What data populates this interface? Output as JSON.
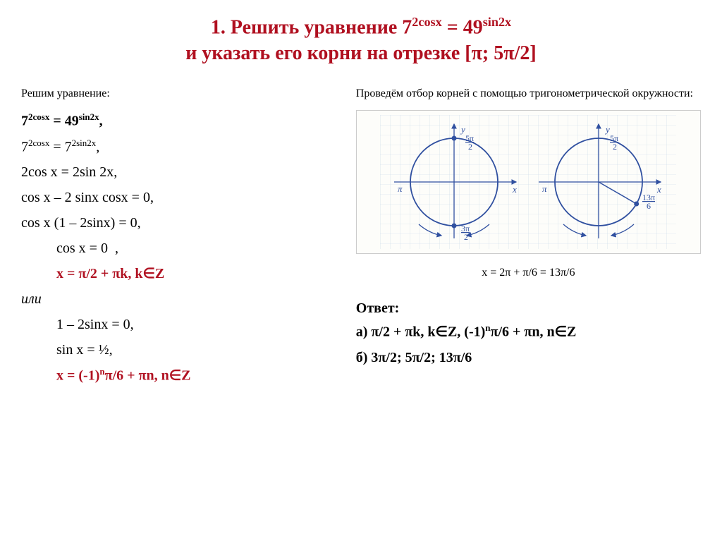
{
  "title": {
    "line1_pre": "1. Решить уравнение 7",
    "line1_sup1": "2cosx",
    "line1_mid": " = 49",
    "line1_sup2": "sin2x",
    "line2": "и указать его корни на отрезке [π; 5π/2]"
  },
  "left": {
    "sub": "Решим уравнение:",
    "eqs": [
      {
        "cls": "eq bold",
        "html": "7<sup>2cosx</sup> = 49<sup>sin2x</sup>,"
      },
      {
        "cls": "eq",
        "html": "7<sup>2cosx</sup> = 7<sup>2sin2x</sup>,"
      },
      {
        "cls": "eq",
        "html": "2cos x = 2sin 2x,"
      },
      {
        "cls": "eq",
        "html": "cos x – 2 sinx cosx = 0,"
      },
      {
        "cls": "eq",
        "html": "cos x (1 – 2sinx) = 0,"
      },
      {
        "cls": "eq ind1",
        "html": "cos x = 0&nbsp;&nbsp;,"
      },
      {
        "cls": "eq red ind1",
        "html": "x = π/2 + πk, k∈Z"
      },
      {
        "cls": "eq ital",
        "html": "или"
      },
      {
        "cls": "eq ind2",
        "html": "1 – 2sinx = 0,"
      },
      {
        "cls": "eq ind2",
        "html": "sin x = ½,"
      },
      {
        "cls": "eq red ind2",
        "html": "x = (-1)<sup>n</sup>π/6 + πn, n∈Z"
      }
    ]
  },
  "right": {
    "sub": "Проведём отбор корней с помощью тригонометрической окружности:",
    "caption": "x = 2π + π/6 = 13π/6",
    "answer_label": "Ответ:",
    "answer_a": "а) π/2 + πk, k∈Z, (-1)<sup>n</sup>π/6 + πn, n∈Z",
    "answer_b": "б) 3π/2; 5π/2; 13π/6"
  },
  "diagram": {
    "grid_color": "#c8d8e8",
    "circle_stroke": "#3050a0",
    "arrow_color": "#3050a0",
    "point_color": "#3050a0",
    "bg": "#fdfdfa",
    "labels": {
      "y": "y",
      "x": "x",
      "pi": "π",
      "top1": "5π",
      "top1b": "2",
      "bot1": "3π",
      "bot1b": "2",
      "top2": "5π",
      "top2b": "2",
      "r2": "13π",
      "r2b": "6"
    }
  }
}
